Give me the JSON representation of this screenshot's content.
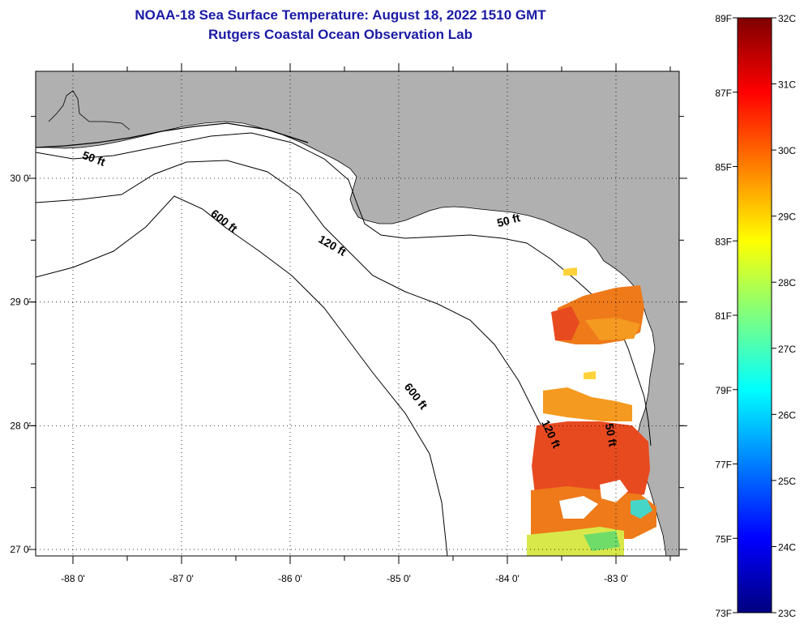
{
  "title": {
    "line1": "NOAA-18 Sea Surface Temperature:  August 18, 2022 1510 GMT",
    "line2": "Rutgers Coastal Ocean Observation Lab"
  },
  "map": {
    "lon_ticks": [
      {
        "value": -88,
        "label": "-88 0'"
      },
      {
        "value": -87,
        "label": "-87 0'"
      },
      {
        "value": -86,
        "label": "-86 0'"
      },
      {
        "value": -85,
        "label": "-85 0'"
      },
      {
        "value": -84,
        "label": "-84 0'"
      },
      {
        "value": -83,
        "label": "-83 0'"
      }
    ],
    "lat_ticks": [
      {
        "value": 30,
        "label": "30 0'"
      },
      {
        "value": 29,
        "label": "29 0'"
      },
      {
        "value": 28,
        "label": "28 0'"
      },
      {
        "value": 27,
        "label": "27 0'"
      }
    ],
    "contour_labels": [
      {
        "text": "50 ft",
        "lon": -87.82,
        "lat": 30.13,
        "rot": 20
      },
      {
        "text": "600 ft",
        "lon": -86.63,
        "lat": 29.63,
        "rot": 38
      },
      {
        "text": "120 ft",
        "lon": -85.63,
        "lat": 29.43,
        "rot": 30
      },
      {
        "text": "50 ft",
        "lon": -83.98,
        "lat": 29.63,
        "rot": -15
      },
      {
        "text": "600 ft",
        "lon": -84.87,
        "lat": 28.22,
        "rot": 52
      },
      {
        "text": "120 ft",
        "lon": -83.63,
        "lat": 27.92,
        "rot": 65
      },
      {
        "text": "50 ft",
        "lon": -83.08,
        "lat": 27.92,
        "rot": 80
      }
    ]
  },
  "colorbar": {
    "fahrenheit_labels": [
      "89F",
      "87F",
      "85F",
      "83F",
      "81F",
      "79F",
      "77F",
      "75F",
      "73F"
    ],
    "celsius_labels": [
      "32C",
      "31C",
      "30C",
      "29C",
      "28C",
      "27C",
      "26C",
      "25C",
      "24C",
      "23C"
    ],
    "colors": [
      "#00007f",
      "#0000ff",
      "#007fff",
      "#00ffff",
      "#7fff7f",
      "#ffff00",
      "#ff7f00",
      "#ff0000",
      "#7f0000"
    ]
  }
}
